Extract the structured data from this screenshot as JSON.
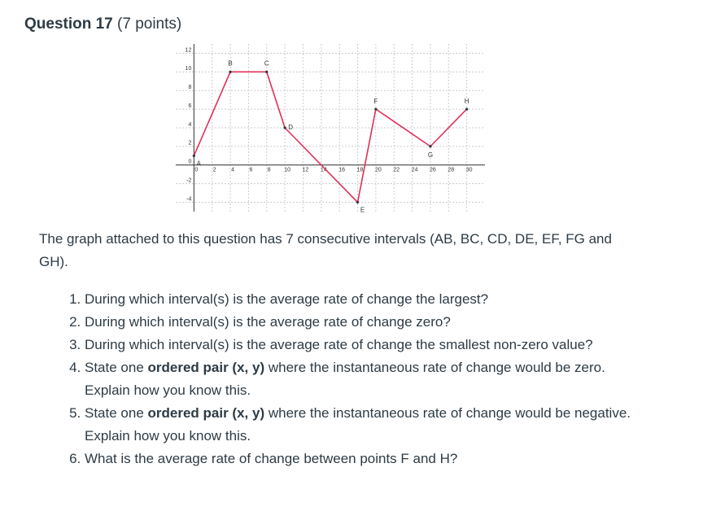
{
  "header": {
    "title": "Question 17",
    "points": "(7 points)"
  },
  "graph": {
    "xlim": [
      -2,
      32
    ],
    "ylim": [
      -5,
      13
    ],
    "xticks": [
      0,
      2,
      4,
      6,
      8,
      10,
      12,
      14,
      16,
      18,
      20,
      22,
      24,
      26,
      28,
      30
    ],
    "yticks": [
      -4,
      -2,
      0,
      2,
      4,
      6,
      8,
      10,
      12
    ],
    "grid": true,
    "color": "#e0305a",
    "points": [
      {
        "label": "A",
        "x": 0,
        "y": 1
      },
      {
        "label": "B",
        "x": 4,
        "y": 10
      },
      {
        "label": "C",
        "x": 8,
        "y": 10
      },
      {
        "label": "D",
        "x": 10,
        "y": 4
      },
      {
        "label": "E",
        "x": 18,
        "y": -4
      },
      {
        "label": "F",
        "x": 20,
        "y": 6
      },
      {
        "label": "G",
        "x": 26,
        "y": 2
      },
      {
        "label": "H",
        "x": 30,
        "y": 6
      }
    ]
  },
  "body": {
    "paragraph": "The graph attached to this question has 7 consecutive intervals (AB, BC, CD, DE, EF, FG and GH).",
    "list": [
      [
        "During which interval(s) is the average rate of change the largest?"
      ],
      [
        "During which interval(s) is the average rate of change zero?"
      ],
      [
        "During which interval(s) is the average rate of change the smallest non-zero value?"
      ],
      [
        "State one ",
        "ordered pair (x, y)",
        " where the instantaneous rate of change would be zero. Explain how you know this."
      ],
      [
        "State one ",
        "ordered pair (x, y)",
        " where the instantaneous rate of change would be negative. Explain how you know this."
      ],
      [
        "What is the average rate of change between points F and H?"
      ]
    ]
  }
}
